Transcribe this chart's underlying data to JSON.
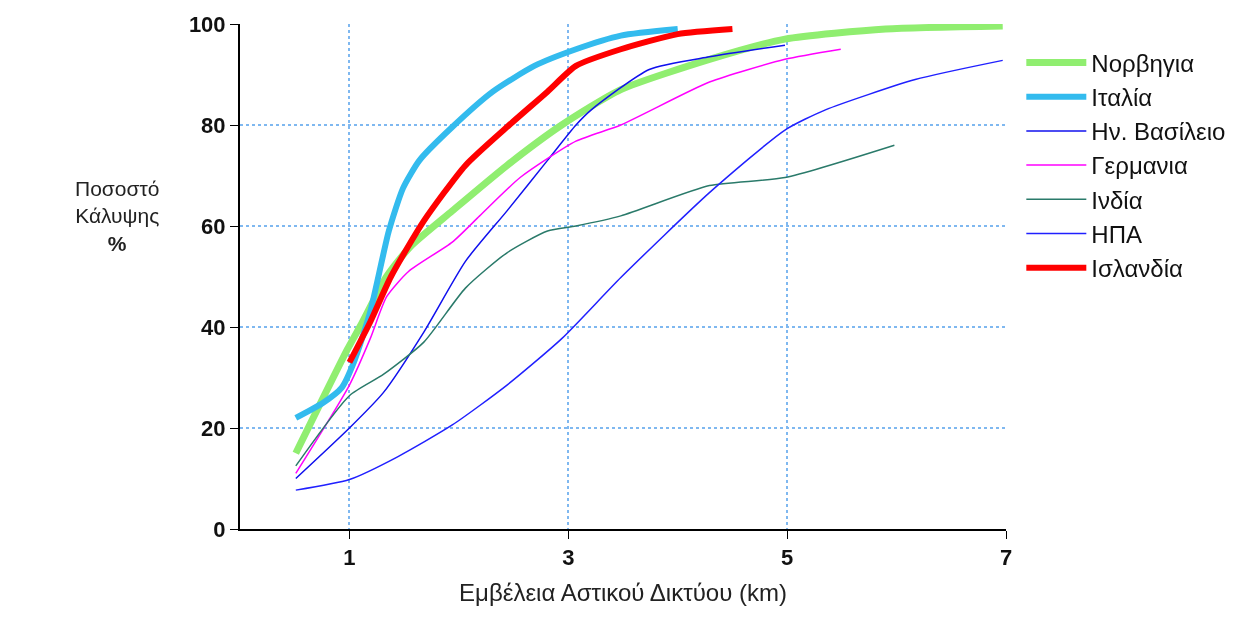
{
  "chart_data": {
    "type": "line",
    "xlabel": "Εμβέλεια Αστικού Δικτύου (km)",
    "ylabel": "Ποσοστό\nΚάλυψης\n%",
    "xlim": [
      0,
      7
    ],
    "xticks": [
      1,
      3,
      5,
      7
    ],
    "ylim": [
      0,
      100
    ],
    "yticks": [
      0,
      20,
      40,
      60,
      80,
      100
    ],
    "grid": true,
    "legend": "right",
    "marker": "none",
    "line_style": "solid",
    "series": [
      {
        "name": "Νορβηγια",
        "color": "#90ee70",
        "x": [
          0.51,
          0.98,
          1.11,
          1.34,
          1.56,
          1.94,
          2.44,
          2.94,
          3.48,
          4.29,
          4.98,
          5.9,
          6.97
        ],
        "values": [
          15,
          35.5,
          40.6,
          50,
          56,
          63,
          72,
          80,
          87,
          93,
          97,
          99,
          99.6
        ]
      },
      {
        "name": "Ιταλία",
        "color": "#33bbee",
        "x": [
          0.51,
          0.76,
          0.93,
          1.04,
          1.19,
          1.36,
          1.49,
          1.64,
          1.94,
          2.31,
          2.69,
          3.07,
          3.48,
          4.0
        ],
        "values": [
          22,
          25,
          28,
          33,
          43,
          59,
          67.5,
          73,
          79.6,
          86.6,
          91.7,
          95,
          97.7,
          99
        ]
      },
      {
        "name": "Ην. Βασίλειο",
        "color": "#1010ee",
        "x": [
          0.51,
          1.0,
          1.31,
          1.68,
          2.06,
          2.44,
          2.81,
          3.07,
          3.21,
          3.74,
          4.29,
          4.98
        ],
        "values": [
          10,
          20,
          27,
          39,
          53,
          63,
          73,
          80,
          83,
          91,
          93.5,
          95.8
        ]
      },
      {
        "name": "Γερμανια",
        "color": "#ff00ff",
        "x": [
          0.51,
          0.81,
          1.0,
          1.19,
          1.34,
          1.54,
          1.94,
          2.19,
          2.56,
          3.07,
          3.48,
          4.29,
          4.98,
          5.49
        ],
        "values": [
          11,
          21.5,
          28.5,
          37.7,
          46,
          51,
          56.8,
          62,
          69.6,
          76.8,
          80,
          88.5,
          93,
          95
        ]
      },
      {
        "name": "Ινδία",
        "color": "#2a7a6a",
        "x": [
          0.51,
          1.0,
          1.31,
          1.68,
          2.06,
          2.44,
          2.81,
          3.07,
          3.48,
          4.29,
          4.98,
          5.98
        ],
        "values": [
          12.5,
          26.4,
          30.6,
          37,
          47.7,
          54.7,
          59,
          60,
          62,
          68,
          69.6,
          76
        ]
      },
      {
        "name": "ΗΠΑ",
        "color": "#2020ff",
        "x": [
          0.51,
          1.0,
          1.44,
          1.94,
          2.44,
          2.94,
          3.48,
          4.29,
          4.98,
          5.35,
          6.17,
          6.97
        ],
        "values": [
          7.7,
          9.8,
          14.3,
          20.6,
          28.5,
          37.7,
          49.8,
          66.6,
          79,
          83,
          89,
          92.8
        ]
      },
      {
        "name": "Ισλανδία",
        "color": "#ff0000",
        "x": [
          1.0,
          1.19,
          1.38,
          1.68,
          2.06,
          2.44,
          2.81,
          3.07,
          3.48,
          4.0,
          4.5
        ],
        "values": [
          33,
          41,
          50,
          61,
          72,
          79.6,
          86.6,
          91.7,
          95,
          98,
          99
        ]
      }
    ]
  }
}
